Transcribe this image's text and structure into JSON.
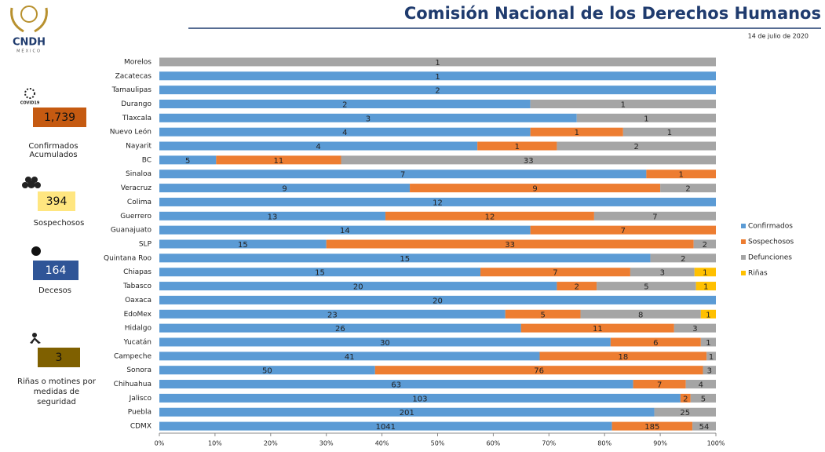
{
  "header": {
    "logo": "CNDH",
    "logo_sub": "MÉXICO",
    "title": "Comisión Nacional de los Derechos Humanos",
    "date": "14 de julio de 2020"
  },
  "summary": [
    {
      "icon": "COVID19",
      "value": "1,739",
      "label": "Confirmados Acumulados"
    },
    {
      "value": "394",
      "label": "Sospechosos"
    },
    {
      "value": "164",
      "label": "Decesos"
    },
    {
      "value": "3",
      "label": "Riñas o motines por medidas de seguridad"
    }
  ],
  "chart_data": {
    "type": "stacked_percent_bar",
    "categories": [
      "Morelos",
      "Zacatecas",
      "Tamaulipas",
      "Durango",
      "Tlaxcala",
      "Nuevo León",
      "Nayarit",
      "BC",
      "Sinaloa",
      "Veracruz",
      "Colima",
      "Guerrero",
      "Guanajuato",
      "SLP",
      "Quintana Roo",
      "Chiapas",
      "Tabasco",
      "Oaxaca",
      "EdoMex",
      "Hidalgo",
      "Yucatán",
      "Campeche",
      "Sonora",
      "Chihuahua",
      "Jalisco",
      "Puebla",
      "CDMX"
    ],
    "series": [
      {
        "name": "Confirmados",
        "color": "#5b9bd5",
        "values": [
          null,
          1,
          2,
          2,
          3,
          4,
          4,
          5,
          7,
          9,
          12,
          13,
          14,
          15,
          15,
          15,
          20,
          20,
          23,
          26,
          30,
          41,
          50,
          63,
          103,
          201,
          1041
        ]
      },
      {
        "name": "Sospechosos",
        "color": "#ed7d31",
        "values": [
          null,
          null,
          null,
          null,
          null,
          1,
          1,
          11,
          1,
          9,
          null,
          12,
          7,
          33,
          null,
          7,
          2,
          null,
          5,
          11,
          6,
          18,
          76,
          7,
          2,
          null,
          185
        ]
      },
      {
        "name": "Defunciones",
        "color": "#a5a5a5",
        "values": [
          1,
          null,
          null,
          1,
          1,
          1,
          2,
          33,
          null,
          2,
          null,
          7,
          null,
          2,
          2,
          3,
          5,
          null,
          8,
          3,
          1,
          1,
          3,
          4,
          5,
          25,
          54
        ]
      },
      {
        "name": "Riñas",
        "color": "#ffc000",
        "values": [
          null,
          null,
          null,
          null,
          null,
          null,
          null,
          null,
          null,
          null,
          null,
          null,
          null,
          null,
          null,
          1,
          1,
          null,
          1,
          null,
          null,
          null,
          null,
          null,
          null,
          null,
          null
        ]
      }
    ],
    "xlim": [
      0,
      100
    ],
    "xticks": [
      {
        "value": 0,
        "label": "0%"
      },
      {
        "value": 10,
        "label": "10%"
      },
      {
        "value": 20,
        "label": "20%"
      },
      {
        "value": 30,
        "label": "30%"
      },
      {
        "value": 40,
        "label": "40%"
      },
      {
        "value": 50,
        "label": "50%"
      },
      {
        "value": 60,
        "label": "60%"
      },
      {
        "value": 70,
        "label": "70%"
      },
      {
        "value": 80,
        "label": "80%"
      },
      {
        "value": 90,
        "label": "90%"
      },
      {
        "value": 100,
        "label": "100%"
      }
    ],
    "legend": "right"
  }
}
